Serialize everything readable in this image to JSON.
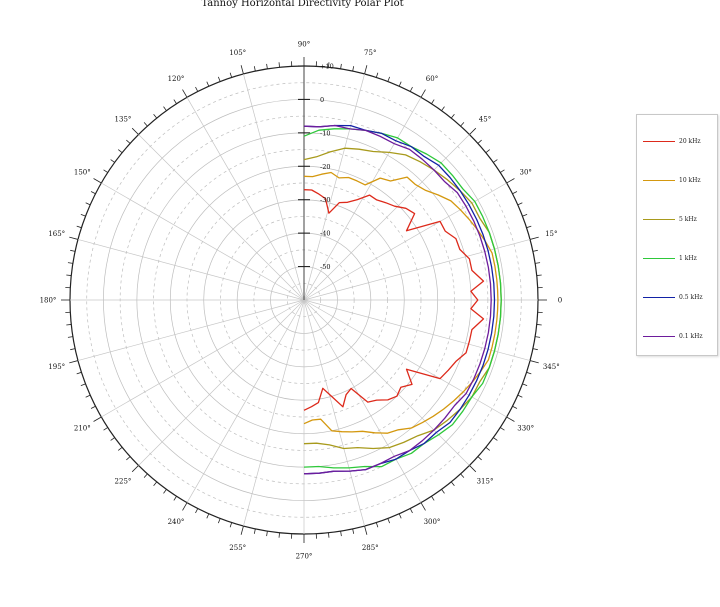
{
  "chart_data": {
    "type": "polar-line",
    "title": "Tannoy Horizontal Directivity Polar Plot",
    "angle_ticks": [
      "0",
      "15°",
      "30°",
      "45°",
      "60°",
      "75°",
      "90°",
      "105°",
      "120°",
      "135°",
      "150°",
      "165°",
      "180°",
      "195°",
      "210°",
      "225°",
      "240°",
      "255°",
      "270°",
      "285°",
      "300°",
      "315°",
      "330°",
      "345°"
    ],
    "angle_values": [
      0,
      15,
      30,
      45,
      60,
      75,
      90,
      105,
      120,
      135,
      150,
      165,
      180,
      195,
      210,
      225,
      240,
      255,
      270,
      285,
      300,
      315,
      330,
      345
    ],
    "radial_ticks": [
      "+10",
      "0",
      "-10",
      "-20",
      "-30",
      "-40",
      "-50"
    ],
    "radial_values": [
      10,
      0,
      -10,
      -20,
      -30,
      -40,
      -50
    ],
    "rlim": [
      -60,
      10
    ],
    "grid": true,
    "legend_position": "right",
    "series": [
      {
        "name": "20 kHz",
        "color": "#dd2a1b",
        "angles": [
          -90,
          -86,
          -82,
          -78,
          -74,
          -70,
          -66,
          -62,
          -58,
          -54,
          -50,
          -46,
          -42,
          -38,
          -34,
          -30,
          -26,
          -22,
          -18,
          -14,
          -10,
          -6,
          -3,
          0,
          3,
          6,
          10,
          14,
          18,
          22,
          26,
          30,
          34,
          38,
          42,
          46,
          50,
          54,
          58,
          62,
          66,
          70,
          74,
          78,
          82,
          86,
          90
        ],
        "values": [
          -27,
          -28,
          -29,
          -33,
          -30,
          -26,
          -29,
          -30,
          -24,
          -23,
          -21,
          -20,
          -21,
          -19,
          -23,
          -13,
          -12,
          -11,
          -9,
          -9,
          -9,
          -6,
          -10,
          -8,
          -10,
          -6,
          -9,
          -9,
          -11,
          -11,
          -13,
          -13,
          -23,
          -18,
          -19,
          -21,
          -22,
          -23,
          -23,
          -26,
          -28,
          -29,
          -33,
          -29,
          -28,
          -27,
          -27
        ]
      },
      {
        "name": "10 kHz",
        "color": "#d4980f",
        "angles": [
          -90,
          -86,
          -82,
          -78,
          -74,
          -70,
          -66,
          -62,
          -58,
          -54,
          -50,
          -46,
          -42,
          -38,
          -34,
          -30,
          -26,
          -22,
          -18,
          -14,
          -10,
          -6,
          -3,
          0,
          3,
          6,
          10,
          14,
          18,
          22,
          26,
          30,
          34,
          38,
          42,
          46,
          50,
          54,
          58,
          62,
          66,
          70,
          74,
          78,
          82,
          86,
          90
        ],
        "values": [
          -23,
          -24,
          -24,
          -20,
          -19,
          -18,
          -17,
          -15,
          -13,
          -12,
          -10,
          -9,
          -8,
          -7,
          -6,
          -5,
          -4,
          -3,
          -2,
          -2,
          -2,
          -2,
          -2,
          -2,
          -2,
          -2,
          -2,
          -2,
          -3,
          -4,
          -5,
          -6,
          -7,
          -9,
          -11,
          -12,
          -12,
          -16,
          -17,
          -21,
          -21,
          -21,
          -22,
          -21,
          -22,
          -23,
          -23
        ]
      },
      {
        "name": "5 kHz",
        "color": "#a89a1c",
        "angles": [
          -90,
          -85,
          -80,
          -75,
          -70,
          -65,
          -60,
          -55,
          -50,
          -45,
          -40,
          -35,
          -30,
          -25,
          -20,
          -15,
          -10,
          -5,
          0,
          5,
          10,
          15,
          20,
          25,
          30,
          35,
          40,
          45,
          50,
          55,
          60,
          65,
          70,
          75,
          80,
          85,
          90
        ],
        "values": [
          -17,
          -17,
          -16,
          -14,
          -13,
          -11,
          -9,
          -8,
          -7,
          -5,
          -4,
          -3,
          -2,
          -2,
          -1,
          -1,
          -1,
          -1,
          -1,
          -1,
          -1,
          -1,
          -1,
          -2,
          -2,
          -3,
          -4,
          -5,
          -6,
          -7,
          -9,
          -11,
          -12,
          -13,
          -15,
          -17,
          -18
        ]
      },
      {
        "name": "1 kHz",
        "color": "#2ec83a",
        "angles": [
          -90,
          -85,
          -80,
          -75,
          -70,
          -65,
          -60,
          -55,
          -50,
          -45,
          -40,
          -35,
          -30,
          -25,
          -20,
          -15,
          -10,
          -5,
          0,
          5,
          10,
          15,
          20,
          25,
          30,
          35,
          40,
          45,
          50,
          55,
          60,
          65,
          70,
          75,
          80,
          85,
          90
        ],
        "values": [
          -10,
          -10,
          -9,
          -8,
          -7,
          -5,
          -5,
          -4,
          -4,
          -3,
          -2,
          -2,
          -2,
          -1,
          -1,
          -1,
          -1,
          -1,
          -1,
          -1,
          -1,
          -1,
          -1,
          -1,
          -1,
          -2,
          -2,
          -2,
          -3,
          -4,
          -4,
          -5,
          -6,
          -7,
          -8,
          -9,
          -11
        ]
      },
      {
        "name": "0.5 kHz",
        "color": "#1222a6",
        "angles": [
          -90,
          -85,
          -80,
          -75,
          -70,
          -65,
          -60,
          -55,
          -50,
          -45,
          -40,
          -35,
          -30,
          -25,
          -20,
          -15,
          -10,
          -5,
          0,
          5,
          10,
          15,
          20,
          25,
          30,
          35,
          40,
          45,
          50,
          55,
          60,
          65,
          70,
          75,
          80,
          85,
          90
        ],
        "values": [
          -8,
          -8,
          -8,
          -7,
          -6,
          -6,
          -5,
          -5,
          -4,
          -4,
          -3,
          -3,
          -3,
          -3,
          -3,
          -3,
          -3,
          -3,
          -3,
          -3,
          -3,
          -3,
          -3,
          -3,
          -3,
          -3,
          -3,
          -3,
          -4,
          -4,
          -5,
          -5,
          -6,
          -6,
          -7,
          -8,
          -8
        ]
      },
      {
        "name": "0.1 kHz",
        "color": "#6d1c9c",
        "angles": [
          -90,
          -85,
          -80,
          -75,
          -70,
          -65,
          -60,
          -55,
          -50,
          -45,
          -40,
          -35,
          -30,
          -25,
          -20,
          -15,
          -10,
          -5,
          0,
          5,
          10,
          15,
          20,
          25,
          30,
          35,
          40,
          45,
          50,
          55,
          60,
          65,
          70,
          75,
          80,
          85,
          90
        ],
        "values": [
          -8,
          -8,
          -8,
          -7,
          -6,
          -6,
          -6,
          -5,
          -5,
          -5,
          -5,
          -5,
          -4,
          -4,
          -4,
          -4,
          -4,
          -4,
          -4,
          -4,
          -4,
          -4,
          -4,
          -4,
          -4,
          -4,
          -5,
          -5,
          -5,
          -5,
          -6,
          -6,
          -6,
          -7,
          -7,
          -8,
          -8
        ]
      }
    ]
  }
}
